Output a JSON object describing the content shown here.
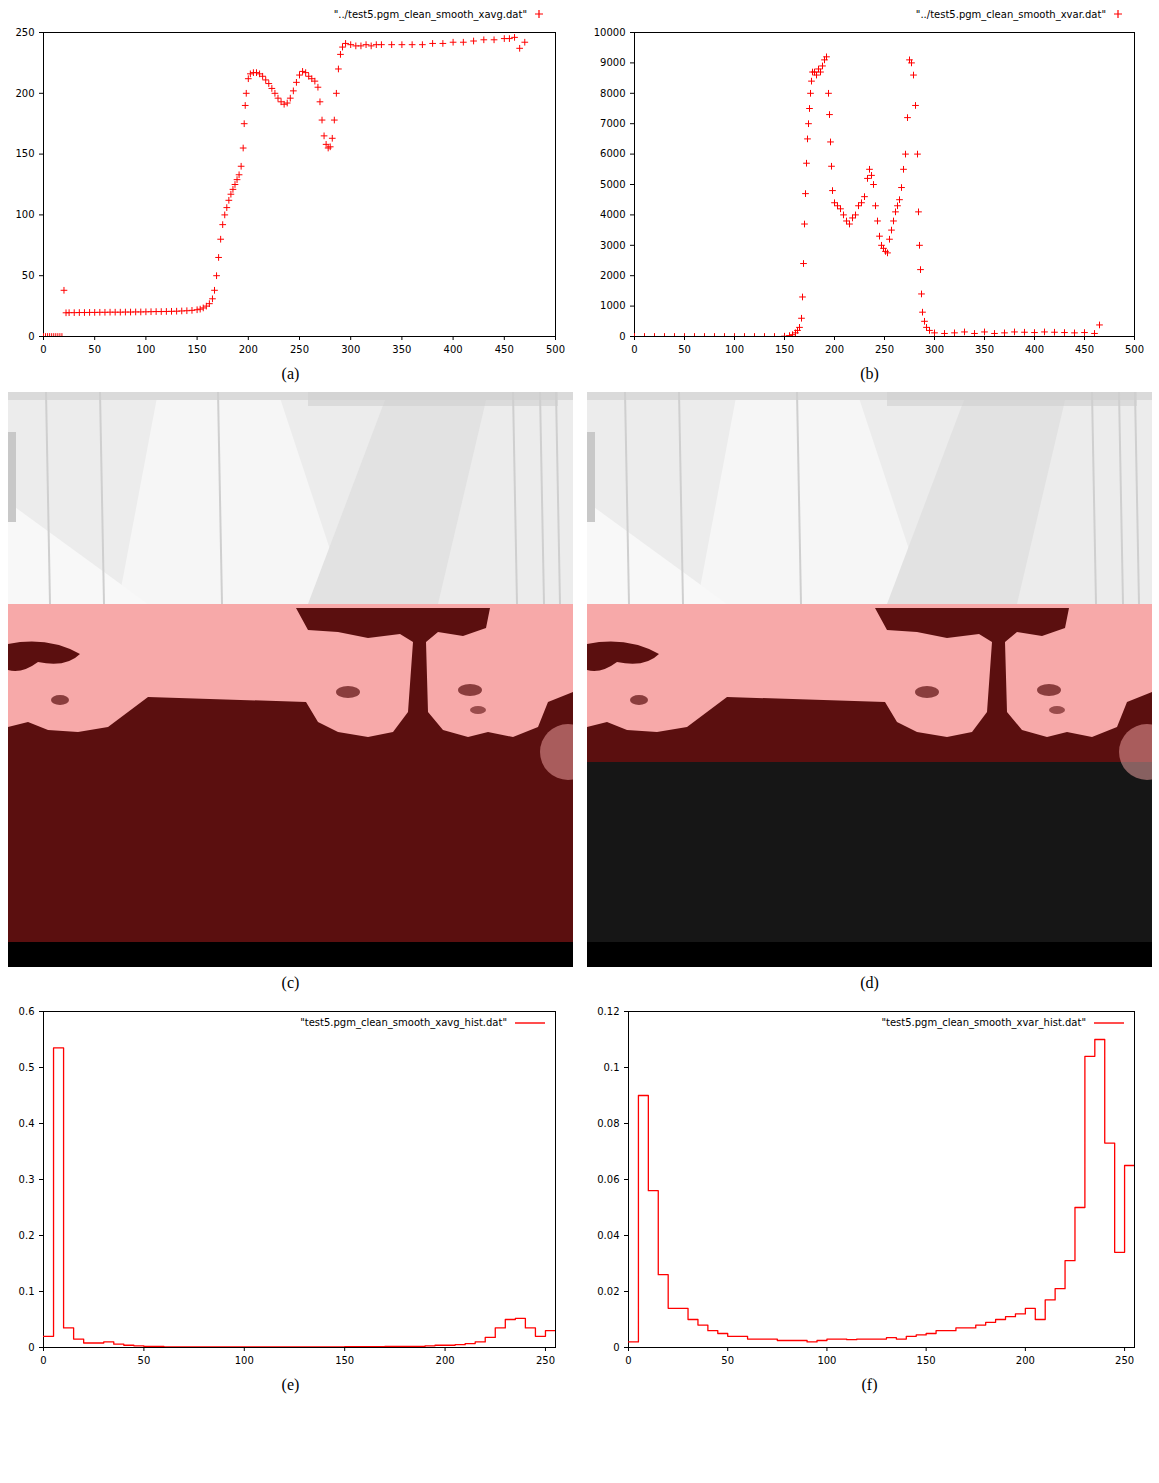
{
  "chart_data": [
    {
      "type": "scatter",
      "caption": "(a)",
      "legend": "above",
      "grid": false,
      "xlim": [
        0,
        500
      ],
      "xticks": [
        0,
        50,
        100,
        150,
        200,
        250,
        300,
        350,
        400,
        450,
        500
      ],
      "ylim": [
        0,
        250
      ],
      "yticks": [
        0,
        50,
        100,
        150,
        200,
        250
      ],
      "x": [
        0,
        2,
        4,
        6,
        8,
        10,
        12,
        14,
        16,
        18,
        20,
        22,
        25,
        30,
        35,
        40,
        45,
        50,
        55,
        60,
        65,
        70,
        75,
        80,
        85,
        90,
        95,
        100,
        105,
        110,
        115,
        120,
        125,
        130,
        135,
        140,
        145,
        150,
        153,
        156,
        159,
        162,
        165,
        167,
        169,
        171,
        173,
        175,
        177,
        179,
        181,
        183,
        185,
        187,
        189,
        191,
        193,
        195,
        196,
        197,
        198,
        200,
        202,
        205,
        208,
        211,
        214,
        217,
        220,
        223,
        226,
        229,
        232,
        235,
        238,
        241,
        244,
        247,
        250,
        253,
        256,
        259,
        262,
        265,
        268,
        270,
        272,
        274,
        276,
        278,
        280,
        282,
        284,
        286,
        288,
        290,
        292,
        295,
        300,
        305,
        310,
        315,
        320,
        325,
        330,
        340,
        350,
        360,
        370,
        380,
        390,
        400,
        410,
        420,
        430,
        440,
        450,
        455,
        460,
        465,
        470
      ],
      "series": [
        {
          "name": "\"../test5.pgm_clean_smooth_xavg.dat\"",
          "color": "#ff0000",
          "marker": "plus",
          "values": [
            0,
            0,
            0,
            0,
            0,
            0,
            0,
            0,
            0,
            0,
            38,
            19.5,
            19.6,
            19.6,
            19.7,
            19.7,
            19.8,
            19.8,
            19.9,
            19.9,
            20,
            20,
            20,
            20.1,
            20.1,
            20.2,
            20.2,
            20.3,
            20.4,
            20.5,
            20.5,
            20.6,
            20.7,
            20.8,
            21,
            21.2,
            21.5,
            22,
            22.5,
            23.5,
            25,
            27,
            31,
            38,
            50,
            65,
            80,
            92,
            100,
            106,
            112,
            117,
            121,
            125,
            129,
            133,
            140,
            155,
            175,
            190,
            200,
            212,
            216,
            217,
            217,
            216,
            214,
            211,
            208,
            204,
            200,
            196,
            193,
            191,
            192,
            196,
            202,
            209,
            215,
            218,
            217,
            214,
            212,
            210,
            205,
            193,
            178,
            165,
            158,
            155,
            156,
            163,
            178,
            200,
            220,
            232,
            238,
            241,
            240,
            239,
            239,
            240,
            239,
            240,
            240,
            240,
            240,
            240,
            240,
            241,
            241,
            242,
            242,
            243,
            244,
            244,
            245,
            245,
            246,
            237,
            242
          ]
        }
      ]
    },
    {
      "type": "scatter",
      "caption": "(b)",
      "legend": "above",
      "grid": false,
      "xlim": [
        0,
        500
      ],
      "xticks": [
        0,
        50,
        100,
        150,
        200,
        250,
        300,
        350,
        400,
        450,
        500
      ],
      "ylim": [
        0,
        10000
      ],
      "yticks": [
        0,
        1000,
        2000,
        3000,
        4000,
        5000,
        6000,
        7000,
        8000,
        9000,
        10000
      ],
      "x": [
        0,
        10,
        20,
        30,
        40,
        50,
        60,
        70,
        80,
        90,
        100,
        110,
        120,
        130,
        140,
        150,
        155,
        158,
        161,
        163,
        165,
        167,
        168,
        169,
        170,
        171,
        172,
        173,
        174,
        175,
        176,
        177,
        178,
        180,
        182,
        184,
        186,
        188,
        190,
        192,
        194,
        195,
        196,
        197,
        198,
        200,
        203,
        206,
        209,
        212,
        215,
        218,
        221,
        224,
        227,
        230,
        233,
        235,
        237,
        239,
        241,
        243,
        245,
        247,
        249,
        251,
        253,
        255,
        257,
        259,
        261,
        263,
        265,
        267,
        269,
        271,
        273,
        275,
        277,
        279,
        281,
        283,
        284,
        285,
        286,
        287,
        288,
        290,
        292,
        295,
        300,
        310,
        320,
        330,
        340,
        350,
        360,
        370,
        380,
        390,
        400,
        410,
        420,
        430,
        440,
        450,
        460,
        465
      ],
      "series": [
        {
          "name": "\"../test5.pgm_clean_smooth_xvar.dat\"",
          "color": "#ff0000",
          "marker": "plus",
          "values": [
            0,
            0,
            0,
            0,
            0,
            0,
            0,
            0,
            0,
            0,
            0,
            0,
            0,
            0,
            0,
            10,
            30,
            60,
            120,
            200,
            300,
            600,
            1300,
            2400,
            3700,
            4700,
            5700,
            6500,
            7000,
            7500,
            8000,
            8400,
            8700,
            8700,
            8600,
            8800,
            8700,
            8900,
            9100,
            9200,
            8000,
            7300,
            6400,
            5600,
            4800,
            4400,
            4300,
            4200,
            4000,
            3800,
            3700,
            3900,
            4000,
            4300,
            4400,
            4600,
            5200,
            5500,
            5300,
            5000,
            4300,
            3800,
            3300,
            3000,
            2900,
            2800,
            2750,
            3200,
            3500,
            3800,
            4100,
            4300,
            4500,
            4900,
            5500,
            6000,
            7200,
            9100,
            9000,
            8600,
            7600,
            6000,
            4100,
            3000,
            2200,
            1400,
            800,
            500,
            300,
            200,
            120,
            100,
            120,
            150,
            100,
            150,
            100,
            120,
            150,
            140,
            130,
            150,
            140,
            130,
            120,
            130,
            100,
            380
          ]
        }
      ]
    },
    {
      "type": "image",
      "caption": "(c)",
      "colors": [
        "#f7a9a9",
        "#5b0f0f"
      ]
    },
    {
      "type": "image",
      "caption": "(d)",
      "colors": [
        "#f7a9a9",
        "#5b0f0f",
        "#161616"
      ]
    },
    {
      "type": "histogram",
      "caption": "(e)",
      "legend": "top-right",
      "grid": false,
      "xlim": [
        0,
        255
      ],
      "xticks": [
        0,
        50,
        100,
        150,
        200,
        250
      ],
      "ylim": [
        0,
        0.6
      ],
      "yticks": [
        0,
        0.1,
        0.2,
        0.3,
        0.4,
        0.5,
        0.6
      ],
      "bins": [
        0,
        5,
        10,
        15,
        20,
        25,
        30,
        35,
        40,
        45,
        50,
        55,
        60,
        65,
        70,
        75,
        80,
        85,
        90,
        95,
        100,
        105,
        110,
        115,
        120,
        125,
        130,
        135,
        140,
        145,
        150,
        155,
        160,
        165,
        170,
        175,
        180,
        185,
        190,
        195,
        200,
        205,
        210,
        215,
        220,
        225,
        230,
        235,
        240,
        245,
        250,
        255
      ],
      "series": [
        {
          "name": "\"test5.pgm_clean_smooth_xavg_hist.dat\"",
          "color": "#ff0000",
          "line_style": "solid",
          "values": [
            0.02,
            0.535,
            0.035,
            0.015,
            0.008,
            0.008,
            0.01,
            0.006,
            0.004,
            0.003,
            0.002,
            0.002,
            0.001,
            0.001,
            0.001,
            0.001,
            0.001,
            0.001,
            0.001,
            0.001,
            0.001,
            0.001,
            0.001,
            0.001,
            0.001,
            0.001,
            0.001,
            0.001,
            0.001,
            0.001,
            0.0015,
            0.0015,
            0.0015,
            0.0015,
            0.002,
            0.002,
            0.002,
            0.002,
            0.003,
            0.004,
            0.004,
            0.005,
            0.007,
            0.01,
            0.018,
            0.035,
            0.05,
            0.052,
            0.035,
            0.02,
            0.03
          ]
        }
      ]
    },
    {
      "type": "histogram",
      "caption": "(f)",
      "legend": "top-right",
      "grid": false,
      "xlim": [
        0,
        255
      ],
      "xticks": [
        0,
        50,
        100,
        150,
        200,
        250
      ],
      "ylim": [
        0,
        0.12
      ],
      "yticks": [
        0,
        0.02,
        0.04,
        0.06,
        0.08,
        0.1,
        0.12
      ],
      "bins": [
        0,
        5,
        10,
        15,
        20,
        25,
        30,
        35,
        40,
        45,
        50,
        55,
        60,
        65,
        70,
        75,
        80,
        85,
        90,
        95,
        100,
        105,
        110,
        115,
        120,
        125,
        130,
        135,
        140,
        145,
        150,
        155,
        160,
        165,
        170,
        175,
        180,
        185,
        190,
        195,
        200,
        205,
        210,
        215,
        220,
        225,
        230,
        235,
        240,
        245,
        250,
        255
      ],
      "series": [
        {
          "name": "\"test5.pgm_clean_smooth_xvar_hist.dat\"",
          "color": "#ff0000",
          "line_style": "solid",
          "values": [
            0.002,
            0.09,
            0.056,
            0.026,
            0.014,
            0.014,
            0.01,
            0.008,
            0.006,
            0.005,
            0.004,
            0.004,
            0.003,
            0.003,
            0.003,
            0.0025,
            0.0025,
            0.0025,
            0.002,
            0.0025,
            0.003,
            0.003,
            0.0028,
            0.003,
            0.003,
            0.003,
            0.0035,
            0.003,
            0.004,
            0.0045,
            0.005,
            0.006,
            0.006,
            0.007,
            0.007,
            0.008,
            0.009,
            0.01,
            0.011,
            0.012,
            0.014,
            0.01,
            0.017,
            0.021,
            0.031,
            0.05,
            0.104,
            0.11,
            0.073,
            0.034,
            0.065
          ]
        }
      ]
    }
  ]
}
